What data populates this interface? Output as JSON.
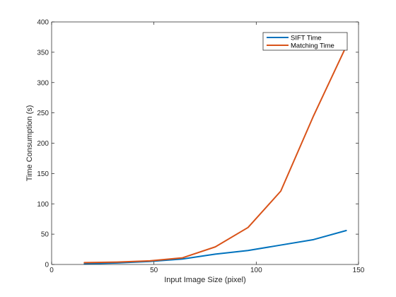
{
  "chart_data": {
    "type": "line",
    "title": "",
    "xlabel": "Input Image Size (pixel)",
    "ylabel": "Time Consumption (s)",
    "xlim": [
      0,
      150
    ],
    "ylim": [
      0,
      400
    ],
    "xticks": [
      0,
      50,
      100,
      150
    ],
    "yticks": [
      0,
      50,
      100,
      150,
      200,
      250,
      300,
      350,
      400
    ],
    "grid": false,
    "legend_position": "top-right",
    "x": [
      16,
      32,
      48,
      64,
      80,
      96,
      112,
      128,
      144
    ],
    "series": [
      {
        "name": "SIFT Time",
        "color": "#0072BD",
        "values": [
          1,
          2.5,
          5,
          9,
          17,
          23,
          32,
          41,
          56
        ]
      },
      {
        "name": "Matching Time",
        "color": "#D95319",
        "values": [
          3,
          4,
          6,
          11,
          29,
          61,
          121,
          245,
          360
        ]
      }
    ]
  }
}
